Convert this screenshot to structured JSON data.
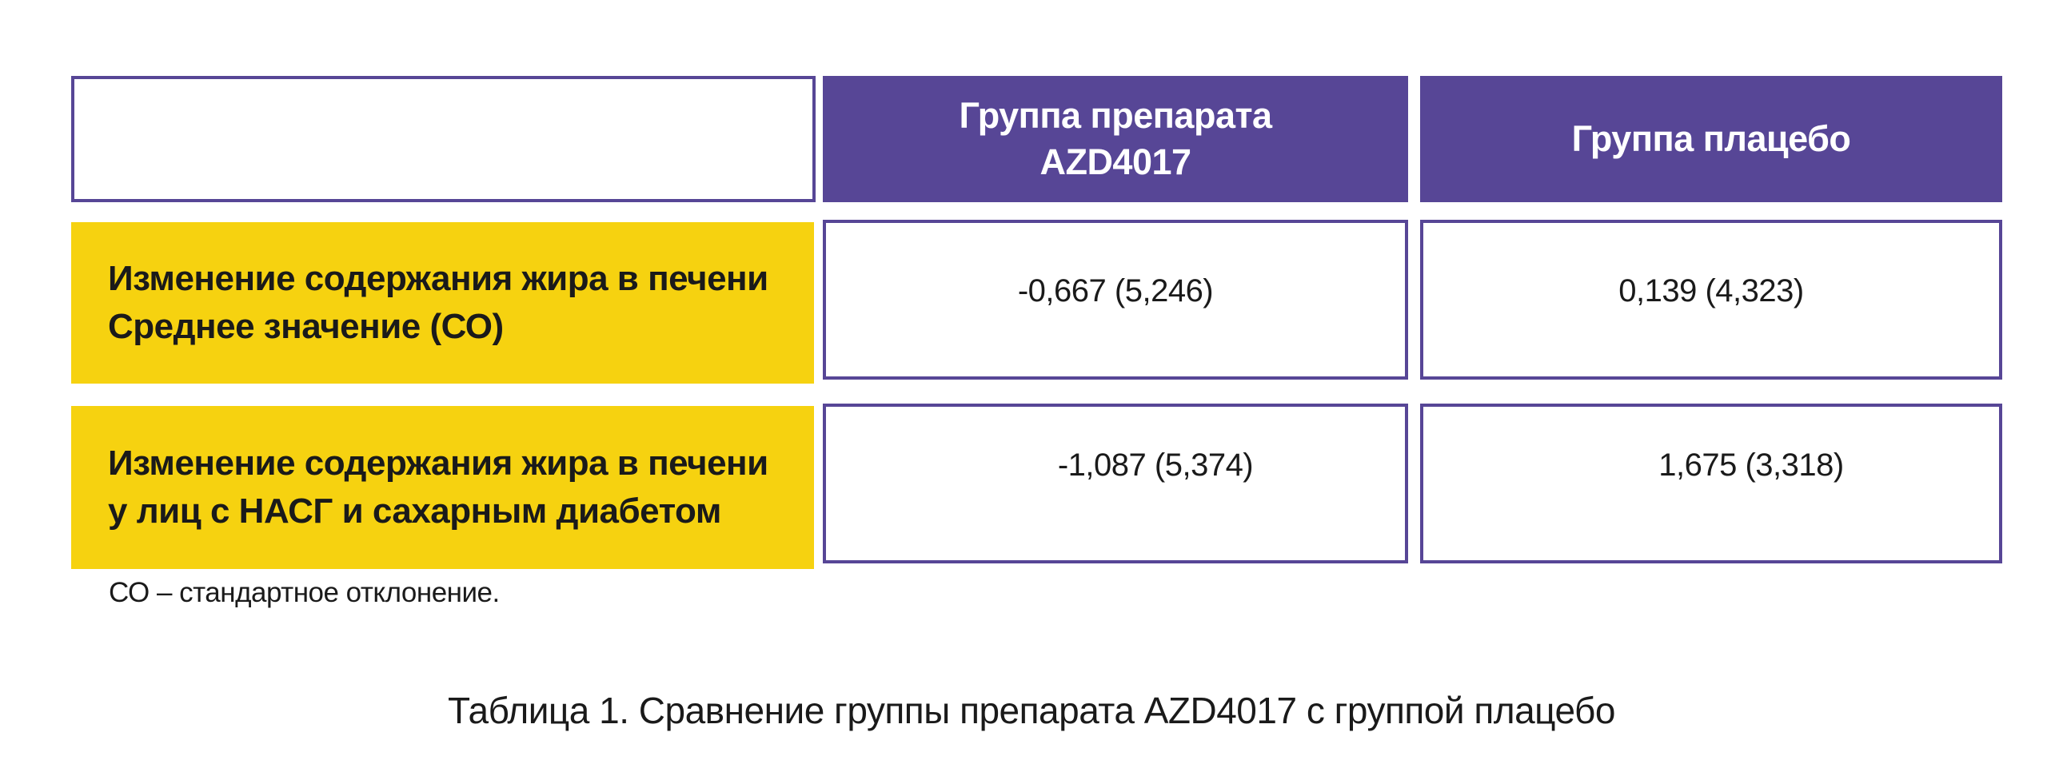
{
  "table": {
    "header": {
      "empty": "",
      "col_drug": "Группа препарата AZD4017",
      "col_placebo": "Группа плацебо"
    },
    "rows": [
      {
        "label": "Изменение содержания жира в печени Среднее значение (СО)",
        "drug": "-0,667 (5,246)",
        "placebo": "0,139 (4,323)"
      },
      {
        "label": "Изменение содержания жира в печени у лиц с НАСГ и сахарным диабетом",
        "drug": "-1,087 (5,374)",
        "placebo": "1,675 (3,318)"
      }
    ]
  },
  "footnote": "СО – стандартное отклонение.",
  "caption": "Таблица 1. Сравнение группы препарата AZD4017 с группой плацебо",
  "colors": {
    "header": "#574696",
    "row_label": "#f6d210"
  }
}
